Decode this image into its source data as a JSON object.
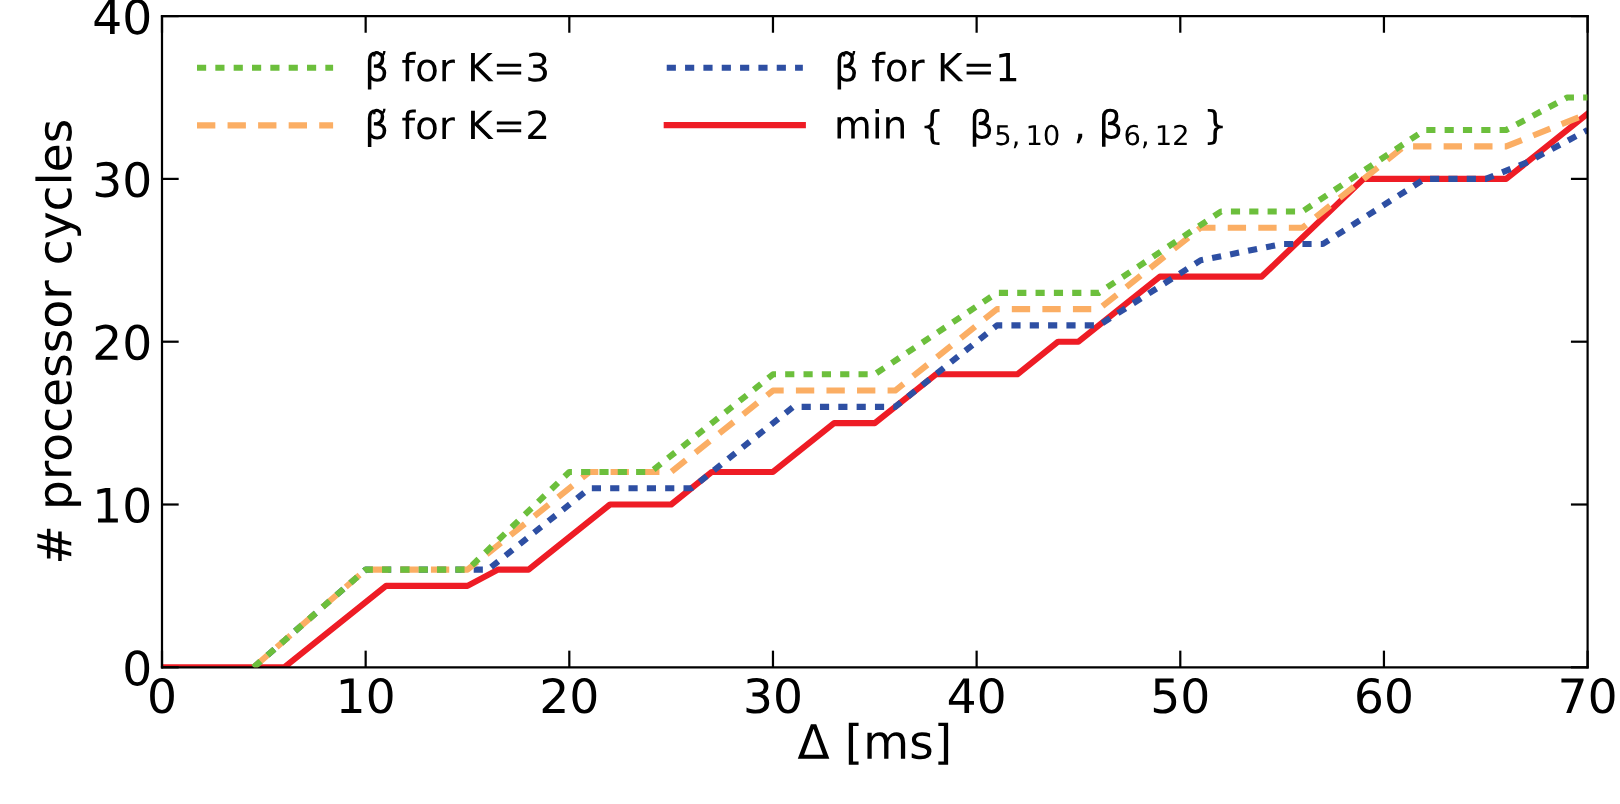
{
  "chart_data": {
    "type": "line",
    "xlabel": "Δ [ms]",
    "ylabel": "# processor cycles",
    "xlim": [
      0,
      70
    ],
    "ylim": [
      0,
      40
    ],
    "xticks": [
      0,
      10,
      20,
      30,
      40,
      50,
      60,
      70
    ],
    "yticks": [
      0,
      10,
      20,
      30,
      40
    ],
    "grid": false,
    "legend": "top left",
    "marker": "none",
    "series": [
      {
        "name": "β̃ for K=3",
        "color": "#6cbf3c",
        "line_style": "dotted",
        "x": [
          4.5,
          10,
          15,
          20,
          24,
          30,
          35,
          41,
          46,
          52,
          56,
          62,
          66,
          69,
          70
        ],
        "values": [
          0,
          6,
          6,
          12,
          12,
          18,
          18,
          23,
          23,
          28,
          28,
          33,
          33,
          35,
          35
        ]
      },
      {
        "name": "β̃ for K=2",
        "color": "#fbae64",
        "line_style": "dashed",
        "x": [
          4.5,
          10,
          15,
          21,
          25,
          30,
          36,
          41,
          46,
          51,
          56,
          61,
          66,
          70
        ],
        "values": [
          0,
          6,
          6,
          12,
          12,
          17,
          17,
          22,
          22,
          27,
          27,
          32,
          32,
          34
        ]
      },
      {
        "name": "β̃ for K=1",
        "color": "#2e4fa3",
        "line_style": "dotted",
        "x": [
          4.5,
          10,
          16,
          21,
          26,
          31,
          36,
          41,
          46,
          51,
          55,
          57,
          62,
          65,
          67,
          70
        ],
        "values": [
          0,
          6,
          6,
          11,
          11,
          16,
          16,
          21,
          21,
          25,
          26,
          26,
          30,
          30,
          31,
          33
        ]
      },
      {
        "name": "min {  β$_{5,10}$ , β$_{6,12}$ }",
        "color": "#ee1c25",
        "line_style": "solid",
        "x": [
          0,
          6,
          11,
          15,
          16.5,
          18,
          22,
          25,
          27,
          30,
          33,
          35,
          38,
          42,
          44,
          45,
          49,
          54,
          59,
          66,
          70
        ],
        "values": [
          0,
          0,
          5,
          5,
          6,
          6,
          10,
          10,
          12,
          12,
          15,
          15,
          18,
          18,
          20,
          20,
          24,
          24,
          30,
          30,
          34
        ]
      }
    ]
  }
}
